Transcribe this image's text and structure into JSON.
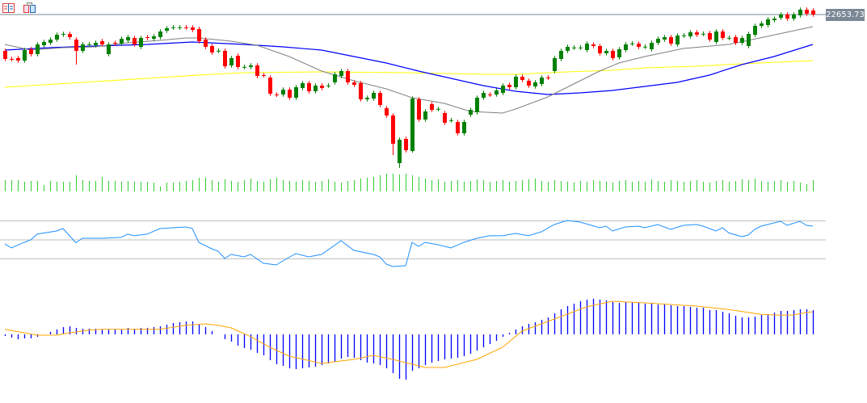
{
  "toolbar": {
    "icons": [
      "list-icon",
      "save-template-icon"
    ]
  },
  "chart_data": {
    "type": "candlestick",
    "title": "",
    "current_price_label": "22653.73",
    "current_price": 22653.73,
    "ylim": [
      17854,
      23104
    ],
    "colors": {
      "up": "#008000",
      "down": "#ff0000",
      "ma_fast": "#808080",
      "ma_mid": "#0000ff",
      "ma_slow": "#ffff00",
      "volume": "#32cd32",
      "rsi": "#1e90ff",
      "macd_hist": "#0000ff",
      "macd_signal": "#ffa500",
      "price_line": "#7a8896"
    },
    "open": [
      21529,
      21279,
      21304,
      21229,
      21579,
      21429,
      21704,
      21779,
      21879,
      22029,
      22054,
      21879,
      21529,
      21729,
      21704,
      21829,
      21429,
      21779,
      21754,
      21854,
      21929,
      21654,
      21954,
      21904,
      21954,
      22154,
      22254,
      22254,
      22259,
      22254,
      22204,
      21879,
      21679,
      21529,
      21529,
      21079,
      21379,
      21029,
      21029,
      21079,
      20779,
      20704,
      20179,
      20179,
      20329,
      20079,
      20379,
      20529,
      20279,
      20454,
      20454,
      20554,
      20754,
      20904,
      20554,
      20529,
      20029,
      20054,
      20229,
      19754,
      19529,
      18054,
      18804,
      18429,
      20029,
      19404,
      19879,
      19729,
      19604,
      19379,
      19329,
      18979,
      19554,
      19629,
      20079,
      20179,
      20179,
      20229,
      20479,
      20404,
      20729,
      20604,
      20429,
      20504,
      20704,
      20904,
      21279,
      21529,
      21629,
      21629,
      21554,
      21729,
      21679,
      21454,
      21529,
      21329,
      21554,
      21754,
      21754,
      21654,
      21579,
      21779,
      21879,
      21954,
      21729,
      22004,
      21979,
      22104,
      22054,
      22079,
      21804,
      22129,
      21929,
      21954,
      21779,
      21679,
      22029,
      22304,
      22329,
      22479,
      22554,
      22654,
      22529,
      22629,
      22804,
      22779
    ],
    "close": [
      21279,
      21274,
      21229,
      21554,
      21429,
      21729,
      21804,
      21879,
      22029,
      22054,
      21954,
      21529,
      21729,
      21734,
      21779,
      21729,
      21729,
      21754,
      21904,
      21954,
      21729,
      21929,
      21929,
      21979,
      22129,
      22229,
      22259,
      22259,
      22254,
      22179,
      21829,
      21654,
      21479,
      21534,
      21054,
      21304,
      21029,
      21034,
      21079,
      20754,
      20774,
      20204,
      20174,
      20329,
      20079,
      20404,
      20529,
      20279,
      20454,
      20379,
      20459,
      20804,
      20904,
      20554,
      20479,
      20029,
      20079,
      20229,
      19854,
      19529,
      18654,
      18779,
      18454,
      20054,
      19404,
      19654,
      19704,
      19734,
      19304,
      19384,
      18979,
      19329,
      19704,
      20079,
      20229,
      20174,
      20304,
      20454,
      20404,
      20729,
      20629,
      20454,
      20554,
      20704,
      20699,
      21304,
      21529,
      21654,
      21634,
      21634,
      21754,
      21679,
      21454,
      21529,
      21304,
      21579,
      21729,
      21759,
      21654,
      21659,
      21779,
      21904,
      21954,
      21754,
      22004,
      22009,
      22104,
      22029,
      22059,
      21879,
      22129,
      21929,
      21934,
      21779,
      21929,
      22054,
      22304,
      22379,
      22504,
      22529,
      22654,
      22529,
      22654,
      22804,
      22679,
      22654
    ],
    "low_overrides": [
      [
        11,
        21104
      ],
      [
        60,
        18304
      ],
      [
        61,
        17904
      ],
      [
        63,
        18379
      ]
    ],
    "ma_fast": [
      [
        0,
        21729
      ],
      [
        4,
        21554
      ],
      [
        9,
        21629
      ],
      [
        14,
        21654
      ],
      [
        19,
        21779
      ],
      [
        24,
        21854
      ],
      [
        28,
        21929
      ],
      [
        30,
        21929
      ],
      [
        35,
        21829
      ],
      [
        39,
        21704
      ],
      [
        44,
        21354
      ],
      [
        49,
        20904
      ],
      [
        54,
        20604
      ],
      [
        59,
        20354
      ],
      [
        63,
        20079
      ],
      [
        68,
        19904
      ],
      [
        72,
        19654
      ],
      [
        77,
        19604
      ],
      [
        79,
        19729
      ],
      [
        84,
        20104
      ],
      [
        89,
        20604
      ],
      [
        92,
        20904
      ],
      [
        95,
        21154
      ],
      [
        99,
        21354
      ],
      [
        105,
        21604
      ],
      [
        112,
        21729
      ],
      [
        118,
        21979
      ],
      [
        125,
        22279
      ]
    ],
    "ma_mid": [
      [
        0,
        21554
      ],
      [
        7,
        21629
      ],
      [
        14,
        21679
      ],
      [
        22,
        21729
      ],
      [
        29,
        21804
      ],
      [
        37,
        21729
      ],
      [
        43,
        21654
      ],
      [
        49,
        21554
      ],
      [
        54,
        21354
      ],
      [
        59,
        21154
      ],
      [
        64,
        20904
      ],
      [
        69,
        20679
      ],
      [
        74,
        20454
      ],
      [
        79,
        20279
      ],
      [
        84,
        20179
      ],
      [
        89,
        20229
      ],
      [
        94,
        20304
      ],
      [
        99,
        20429
      ],
      [
        104,
        20554
      ],
      [
        109,
        20779
      ],
      [
        114,
        21104
      ],
      [
        119,
        21354
      ],
      [
        125,
        21729
      ]
    ],
    "ma_slow": [
      [
        0,
        20404
      ],
      [
        12,
        20554
      ],
      [
        24,
        20704
      ],
      [
        32,
        20804
      ],
      [
        37,
        20854
      ],
      [
        49,
        20879
      ],
      [
        62,
        20854
      ],
      [
        74,
        20804
      ],
      [
        79,
        20804
      ],
      [
        87,
        20879
      ],
      [
        94,
        20929
      ],
      [
        99,
        21004
      ],
      [
        107,
        21054
      ],
      [
        114,
        21129
      ],
      [
        125,
        21229
      ]
    ],
    "volume": [
      14,
      14,
      14,
      12,
      13,
      13,
      8,
      13,
      12,
      12,
      12,
      20,
      14,
      13,
      13,
      18,
      13,
      13,
      12,
      13,
      12,
      12,
      12,
      11,
      6,
      11,
      11,
      12,
      13,
      14,
      17,
      17,
      14,
      12,
      15,
      13,
      12,
      14,
      16,
      13,
      12,
      15,
      17,
      14,
      13,
      12,
      14,
      13,
      12,
      13,
      15,
      12,
      11,
      13,
      14,
      16,
      17,
      18,
      20,
      22,
      22,
      21,
      22,
      20,
      18,
      16,
      14,
      15,
      12,
      13,
      14,
      12,
      13,
      15,
      14,
      12,
      13,
      14,
      12,
      13,
      14,
      15,
      16,
      13,
      12,
      14,
      13,
      12,
      11,
      13,
      12,
      14,
      13,
      12,
      11,
      13,
      14,
      12,
      13,
      12,
      15,
      13,
      12,
      14,
      13,
      12,
      13,
      14,
      12,
      11,
      13,
      14,
      12,
      13,
      15,
      14,
      16,
      13,
      12,
      13,
      14,
      12,
      13,
      11,
      9,
      14
    ],
    "volume_ylim": [
      0,
      30
    ],
    "rsi": {
      "ylim": [
        0,
        100
      ],
      "levels": [
        70,
        50,
        30
      ],
      "points": [
        [
          0,
          45.7
        ],
        [
          1,
          41.5
        ],
        [
          3,
          47.4
        ],
        [
          4,
          50
        ],
        [
          5,
          56
        ],
        [
          8,
          59.4
        ],
        [
          9,
          61.9
        ],
        [
          11,
          46.9
        ],
        [
          12,
          51.7
        ],
        [
          15,
          51.7
        ],
        [
          18,
          52.6
        ],
        [
          19,
          56
        ],
        [
          20,
          54.3
        ],
        [
          22,
          56
        ],
        [
          24,
          61.9
        ],
        [
          28,
          63.6
        ],
        [
          29,
          62
        ],
        [
          30,
          47.4
        ],
        [
          32,
          40.6
        ],
        [
          33,
          38.1
        ],
        [
          34,
          30.4
        ],
        [
          35,
          34.7
        ],
        [
          37,
          32.1
        ],
        [
          38,
          34.7
        ],
        [
          40,
          25.3
        ],
        [
          42,
          23.6
        ],
        [
          43,
          27.9
        ],
        [
          45,
          35.5
        ],
        [
          47,
          32.1
        ],
        [
          49,
          34.7
        ],
        [
          52,
          49.1
        ],
        [
          54,
          38.9
        ],
        [
          57,
          34.7
        ],
        [
          58,
          32.1
        ],
        [
          59,
          24.5
        ],
        [
          60,
          21.9
        ],
        [
          62,
          22.8
        ],
        [
          63,
          47.4
        ],
        [
          64,
          43.2
        ],
        [
          65,
          47.4
        ],
        [
          67,
          44.9
        ],
        [
          69,
          41.5
        ],
        [
          71,
          47.4
        ],
        [
          73,
          51.7
        ],
        [
          75,
          54.3
        ],
        [
          77,
          54.3
        ],
        [
          79,
          56.8
        ],
        [
          81,
          54.3
        ],
        [
          83,
          58.5
        ],
        [
          85,
          66.2
        ],
        [
          87,
          70.4
        ],
        [
          89,
          68.7
        ],
        [
          92,
          62.8
        ],
        [
          93,
          64.5
        ],
        [
          94,
          59.4
        ],
        [
          96,
          63.6
        ],
        [
          98,
          64.5
        ],
        [
          99,
          62.8
        ],
        [
          101,
          66.2
        ],
        [
          103,
          61.1
        ],
        [
          105,
          65.3
        ],
        [
          107,
          66.2
        ],
        [
          108,
          64.5
        ],
        [
          110,
          59.4
        ],
        [
          111,
          62.8
        ],
        [
          112,
          57.3
        ],
        [
          114,
          53.4
        ],
        [
          115,
          55.1
        ],
        [
          116,
          61.1
        ],
        [
          117,
          64.5
        ],
        [
          118,
          66.2
        ],
        [
          120,
          69.6
        ],
        [
          121,
          65.3
        ],
        [
          123,
          69.6
        ],
        [
          124,
          65.3
        ],
        [
          125,
          64.5
        ]
      ]
    },
    "macd": {
      "ylim": [
        -660,
        540
      ],
      "histogram": [
        -20,
        -40,
        -60,
        -50,
        -50,
        -30,
        0,
        30,
        60,
        90,
        100,
        80,
        70,
        70,
        70,
        60,
        60,
        60,
        60,
        80,
        70,
        80,
        80,
        90,
        100,
        120,
        140,
        150,
        160,
        160,
        130,
        90,
        40,
        0,
        -60,
        -90,
        -140,
        -170,
        -190,
        -230,
        -260,
        -320,
        -370,
        -390,
        -420,
        -430,
        -420,
        -410,
        -400,
        -380,
        -360,
        -340,
        -300,
        -280,
        -290,
        -320,
        -350,
        -360,
        -380,
        -420,
        -480,
        -550,
        -560,
        -450,
        -420,
        -380,
        -350,
        -330,
        -310,
        -300,
        -290,
        -270,
        -240,
        -200,
        -160,
        -120,
        -80,
        -30,
        20,
        60,
        100,
        130,
        150,
        180,
        210,
        260,
        310,
        350,
        380,
        410,
        430,
        440,
        430,
        420,
        400,
        390,
        400,
        400,
        390,
        380,
        380,
        370,
        370,
        360,
        350,
        350,
        340,
        330,
        330,
        300,
        300,
        280,
        260,
        230,
        210,
        210,
        220,
        240,
        250,
        270,
        290,
        290,
        300,
        310,
        310,
        300
      ],
      "signal": [
        [
          0,
          63
        ],
        [
          5,
          -10
        ],
        [
          8,
          -10
        ],
        [
          10,
          20
        ],
        [
          13,
          53
        ],
        [
          15,
          63
        ],
        [
          24,
          63
        ],
        [
          28,
          113
        ],
        [
          31,
          130
        ],
        [
          33,
          113
        ],
        [
          35,
          80
        ],
        [
          38,
          -27
        ],
        [
          41,
          -160
        ],
        [
          44,
          -270
        ],
        [
          49,
          -360
        ],
        [
          54,
          -310
        ],
        [
          57,
          -260
        ],
        [
          60,
          -310
        ],
        [
          65,
          -410
        ],
        [
          68,
          -410
        ],
        [
          73,
          -310
        ],
        [
          77,
          -160
        ],
        [
          80,
          40
        ],
        [
          85,
          190
        ],
        [
          90,
          340
        ],
        [
          94,
          410
        ],
        [
          99,
          390
        ],
        [
          107,
          350
        ],
        [
          112,
          307
        ],
        [
          117,
          247
        ],
        [
          120,
          237
        ],
        [
          122,
          240
        ],
        [
          124,
          270
        ],
        [
          125,
          280
        ]
      ]
    }
  }
}
